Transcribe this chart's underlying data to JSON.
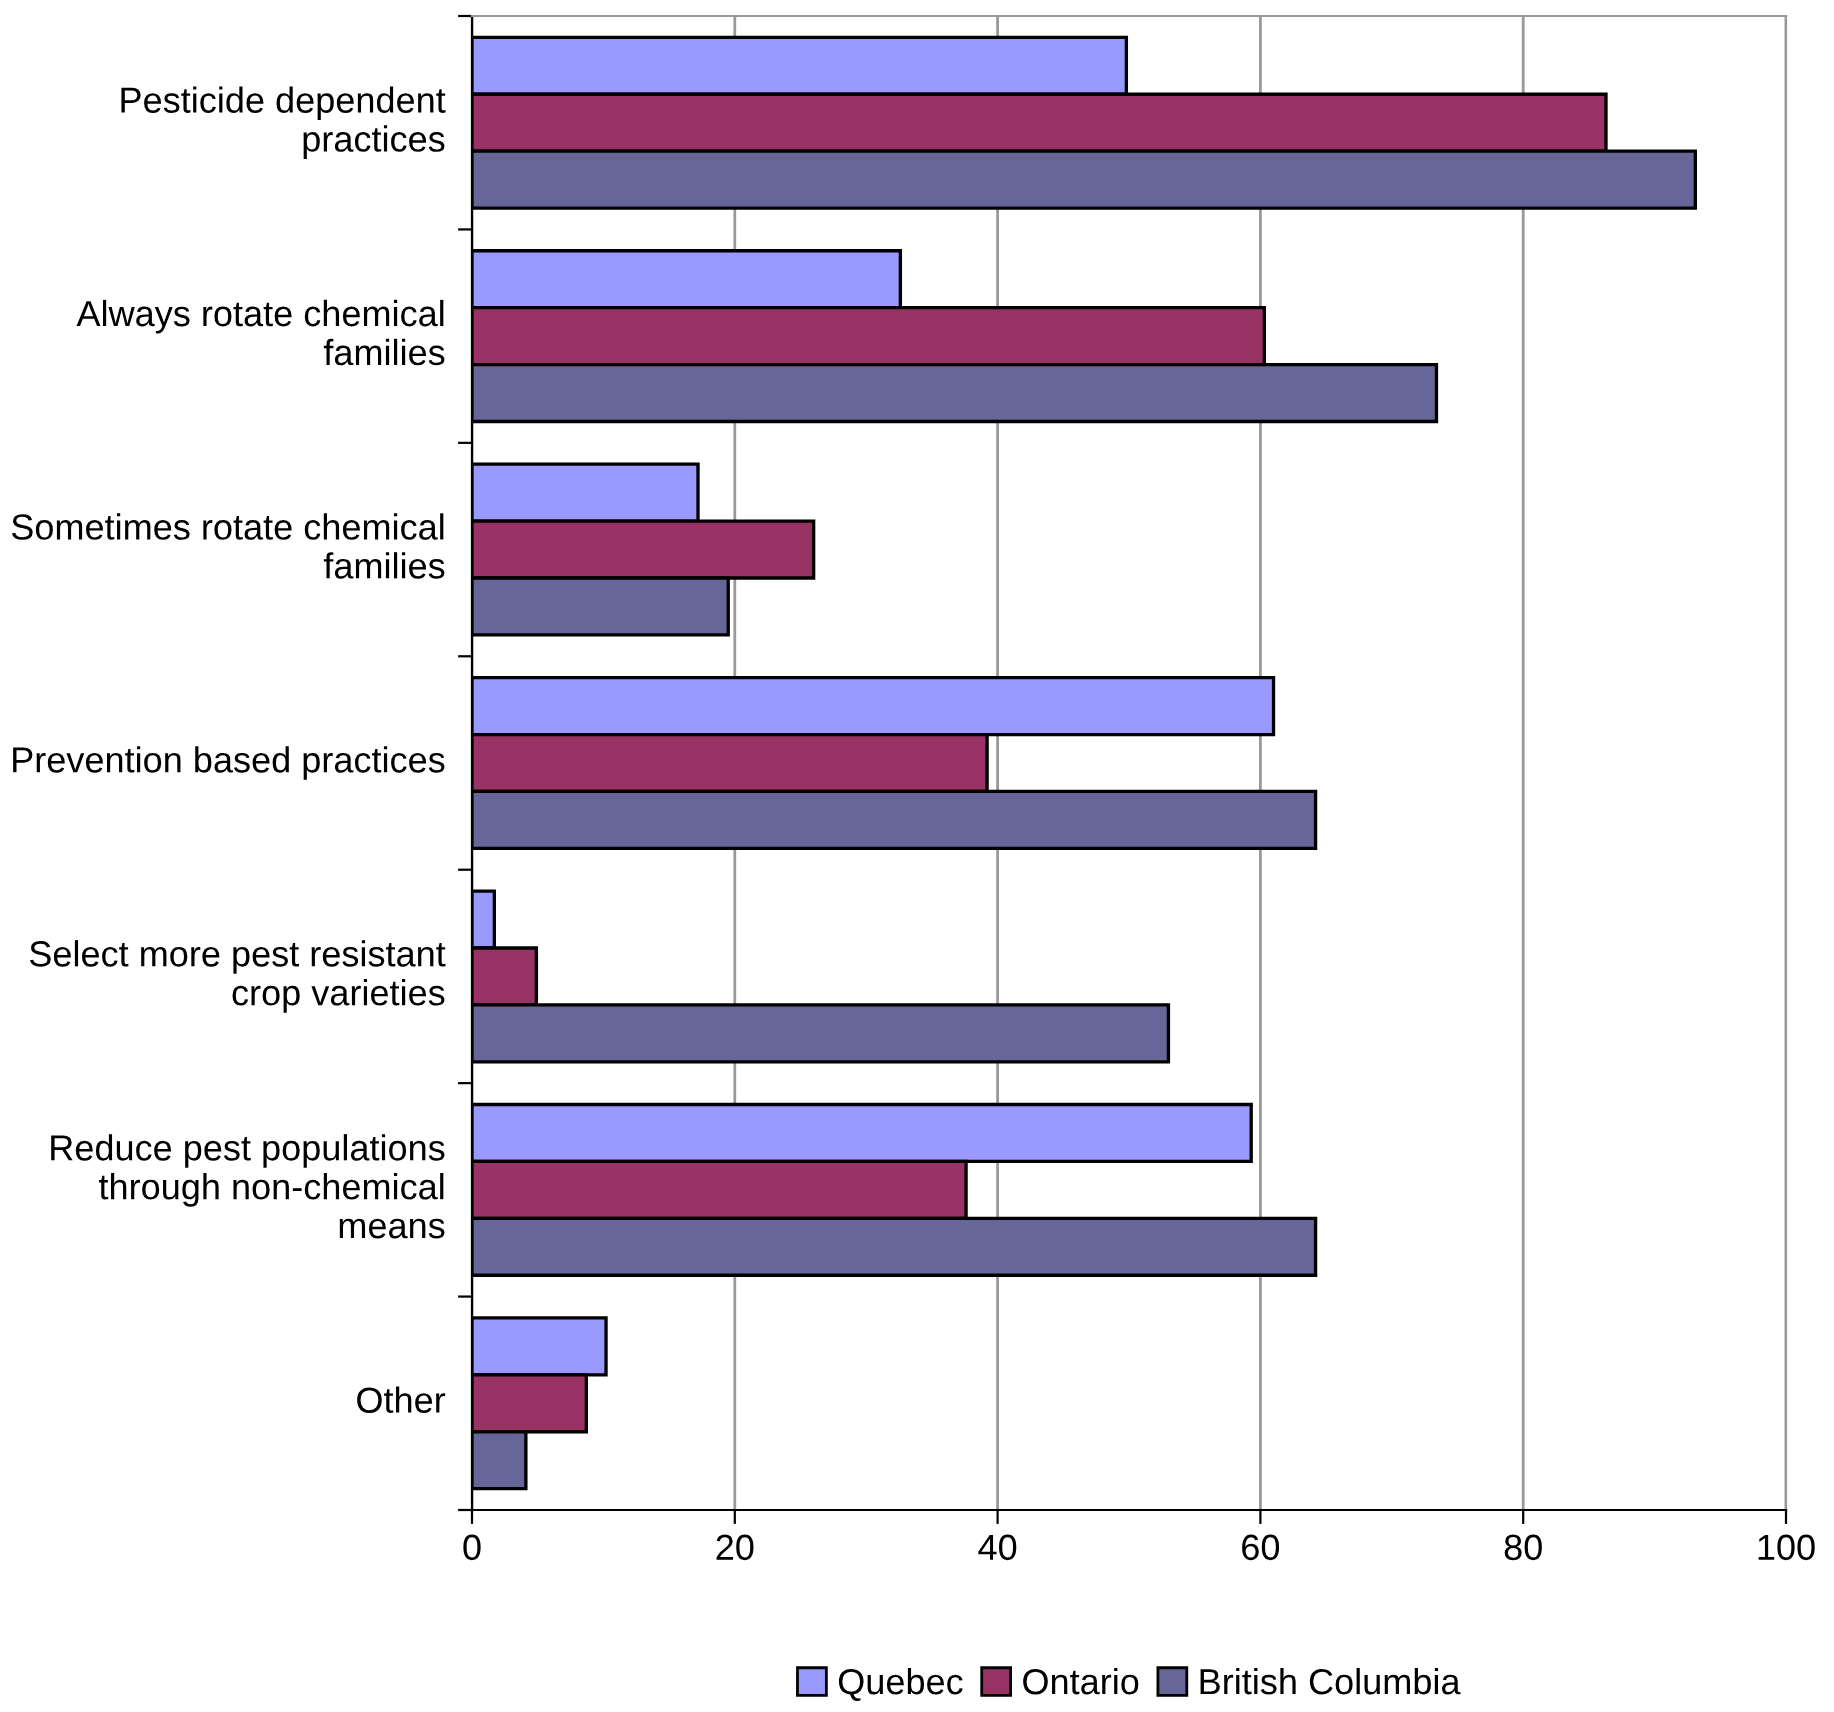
{
  "chart_data": {
    "type": "bar",
    "orientation": "horizontal",
    "categories": [
      "Pesticide dependent practices",
      "Always rotate chemical families",
      "Sometimes rotate chemical families",
      "Prevention based practices",
      "Select more pest resistant crop varieties",
      "Reduce pest populations through non-chemical means",
      "Other"
    ],
    "series": [
      {
        "name": "Quebec",
        "color": "#9999ff",
        "values": [
          49.8,
          32.6,
          17.2,
          61.0,
          1.7,
          59.3,
          10.2
        ]
      },
      {
        "name": "Ontario",
        "color": "#993366",
        "values": [
          86.3,
          60.3,
          26.0,
          39.2,
          4.9,
          37.6,
          8.7
        ]
      },
      {
        "name": "British Columbia",
        "color": "#666699",
        "values": [
          93.1,
          73.4,
          19.5,
          64.2,
          53.0,
          64.2,
          4.1
        ]
      }
    ],
    "xlim": [
      0,
      100
    ],
    "xticks": [
      0,
      20,
      40,
      60,
      80,
      100
    ],
    "grid": "x",
    "legend": "bottom"
  }
}
